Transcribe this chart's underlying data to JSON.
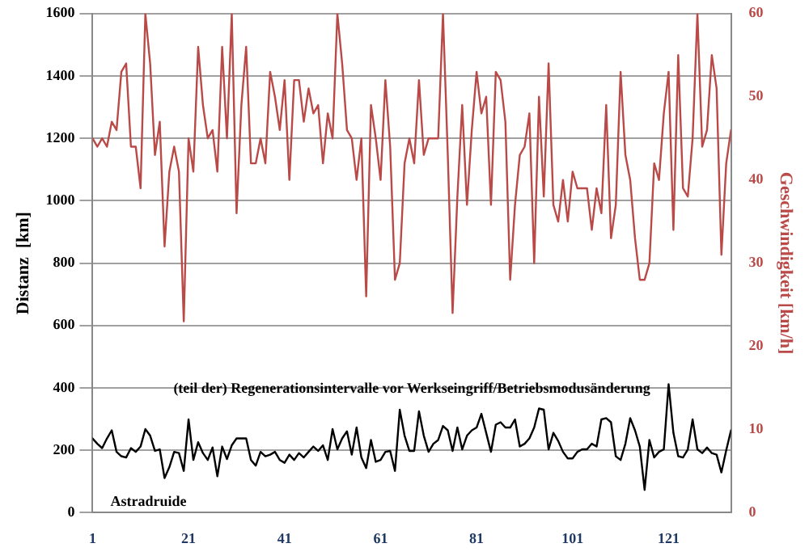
{
  "chart_data": {
    "type": "line",
    "ylabel": "Distanz  [km]",
    "y2label": "Geschwindigkeit [km/h]",
    "annotations": [
      "(teil der) Regenerationsintervalle vor Werkseingriff/Betriebsmodusänderung",
      "Astradruide"
    ],
    "x": [
      1,
      2,
      3,
      4,
      5,
      6,
      7,
      8,
      9,
      10,
      11,
      12,
      13,
      14,
      15,
      16,
      17,
      18,
      19,
      20,
      21,
      22,
      23,
      24,
      25,
      26,
      27,
      28,
      29,
      30,
      31,
      32,
      33,
      34,
      35,
      36,
      37,
      38,
      39,
      40,
      41,
      42,
      43,
      44,
      45,
      46,
      47,
      48,
      49,
      50,
      51,
      52,
      53,
      54,
      55,
      56,
      57,
      58,
      59,
      60,
      61,
      62,
      63,
      64,
      65,
      66,
      67,
      68,
      69,
      70,
      71,
      72,
      73,
      74,
      75,
      76,
      77,
      78,
      79,
      80,
      81,
      82,
      83,
      84,
      85,
      86,
      87,
      88,
      89,
      90,
      91,
      92,
      93,
      94,
      95,
      96,
      97,
      98,
      99,
      100,
      101,
      102,
      103,
      104,
      105,
      106,
      107,
      108,
      109,
      110,
      111,
      112,
      113,
      114,
      115,
      116,
      117,
      118,
      119,
      120,
      121,
      122,
      123,
      124,
      125,
      126,
      127,
      128,
      129,
      130,
      131,
      132,
      133,
      134
    ],
    "series": [
      {
        "color": "#000000",
        "values": [
          238,
          221,
          207,
          238,
          264,
          195,
          181,
          177,
          207,
          195,
          212,
          268,
          247,
          198,
          203,
          111,
          146,
          195,
          191,
          134,
          299,
          169,
          226,
          191,
          169,
          209,
          117,
          212,
          172,
          216,
          238,
          238,
          238,
          169,
          151,
          195,
          181,
          186,
          195,
          169,
          160,
          186,
          169,
          191,
          177,
          195,
          212,
          198,
          216,
          169,
          268,
          203,
          238,
          261,
          186,
          273,
          177,
          143,
          233,
          163,
          169,
          195,
          198,
          134,
          330,
          247,
          198,
          198,
          325,
          247,
          195,
          221,
          233,
          278,
          264,
          198,
          273,
          203,
          247,
          264,
          273,
          317,
          256,
          195,
          282,
          290,
          273,
          273,
          299,
          212,
          221,
          238,
          273,
          334,
          330,
          203,
          256,
          230,
          195,
          174,
          174,
          195,
          203,
          203,
          221,
          212,
          299,
          303,
          290,
          181,
          169,
          221,
          303,
          264,
          212,
          73,
          233,
          177,
          195,
          203,
          412,
          256,
          181,
          177,
          203,
          299,
          203,
          191,
          209,
          191,
          186,
          129,
          200,
          264
        ]
      },
      {
        "color": "#b94a48",
        "axis": "y2",
        "values": [
          45,
          44,
          45,
          44,
          47,
          46,
          53,
          54,
          44,
          44,
          39,
          60,
          54,
          43,
          47,
          32,
          41,
          44,
          41,
          23,
          45,
          41,
          56,
          49,
          45,
          46,
          41,
          56,
          45,
          60,
          36,
          49,
          56,
          42,
          42,
          45,
          42,
          53,
          50,
          46,
          52,
          40,
          52,
          52,
          47,
          51,
          48,
          49,
          42,
          48,
          45,
          60,
          54,
          46,
          45,
          40,
          45,
          26,
          49,
          45,
          40,
          52,
          44,
          28,
          30,
          42,
          45,
          42,
          52,
          43,
          45,
          45,
          45,
          60,
          43,
          24,
          38,
          49,
          37,
          46,
          53,
          48,
          50,
          37,
          53,
          52,
          47,
          28,
          37,
          43,
          44,
          48,
          30,
          50,
          38,
          54,
          37,
          35,
          40,
          35,
          41,
          39,
          39,
          39,
          34,
          39,
          36,
          49,
          33,
          37,
          53,
          43,
          40,
          33,
          28,
          28,
          30,
          42,
          40,
          48,
          53,
          34,
          55,
          39,
          38,
          45,
          60,
          44,
          46,
          55,
          51,
          31,
          42,
          46
        ]
      }
    ],
    "xlim": [
      1,
      134
    ],
    "xticks": [
      1,
      21,
      41,
      61,
      81,
      101,
      121
    ],
    "ylim": [
      0,
      1600
    ],
    "yticks": [
      0,
      200,
      400,
      600,
      800,
      1000,
      1200,
      1400,
      1600
    ],
    "y2lim": [
      0,
      60
    ],
    "y2ticks": [
      0,
      10,
      20,
      30,
      40,
      50,
      60
    ],
    "grid": "y",
    "marker": "none",
    "line_style": "solid",
    "legend": false
  }
}
